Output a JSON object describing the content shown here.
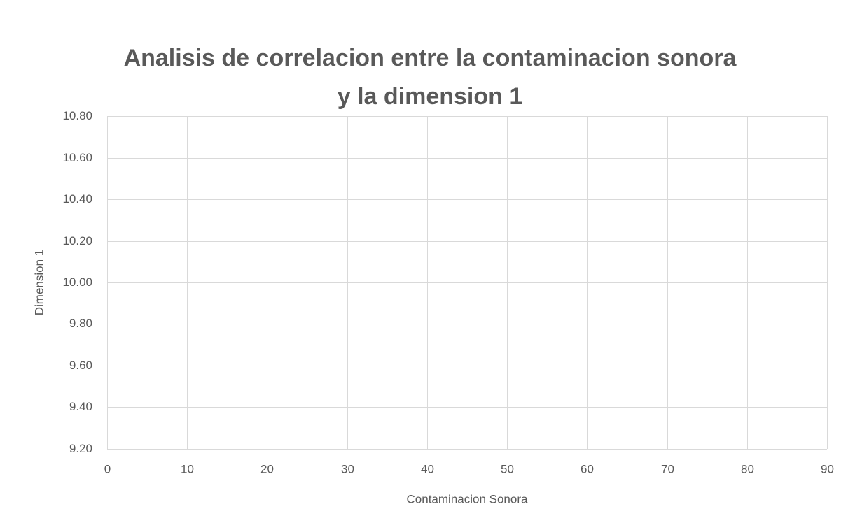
{
  "chart_data": {
    "type": "scatter",
    "title": [
      "Analisis de correlacion entre la contaminacion sonora",
      "y la dimension 1"
    ],
    "x_label": "Contaminacion Sonora",
    "y_label": "Dimension 1",
    "xlim": [
      0,
      90
    ],
    "xticks": [
      0,
      10,
      20,
      30,
      40,
      50,
      60,
      70,
      80,
      90
    ],
    "ylim": [
      9.2,
      10.8
    ],
    "yticks": [
      {
        "value": 9.2,
        "label": "9.20"
      },
      {
        "value": 9.4,
        "label": "9.40"
      },
      {
        "value": 9.6,
        "label": "9.60"
      },
      {
        "value": 9.8,
        "label": "9.80"
      },
      {
        "value": 10.0,
        "label": "10.00"
      },
      {
        "value": 10.2,
        "label": "10.20"
      },
      {
        "value": 10.4,
        "label": "10.40"
      },
      {
        "value": 10.6,
        "label": "10.60"
      },
      {
        "value": 10.8,
        "label": "10.80"
      }
    ],
    "grid": true
  }
}
